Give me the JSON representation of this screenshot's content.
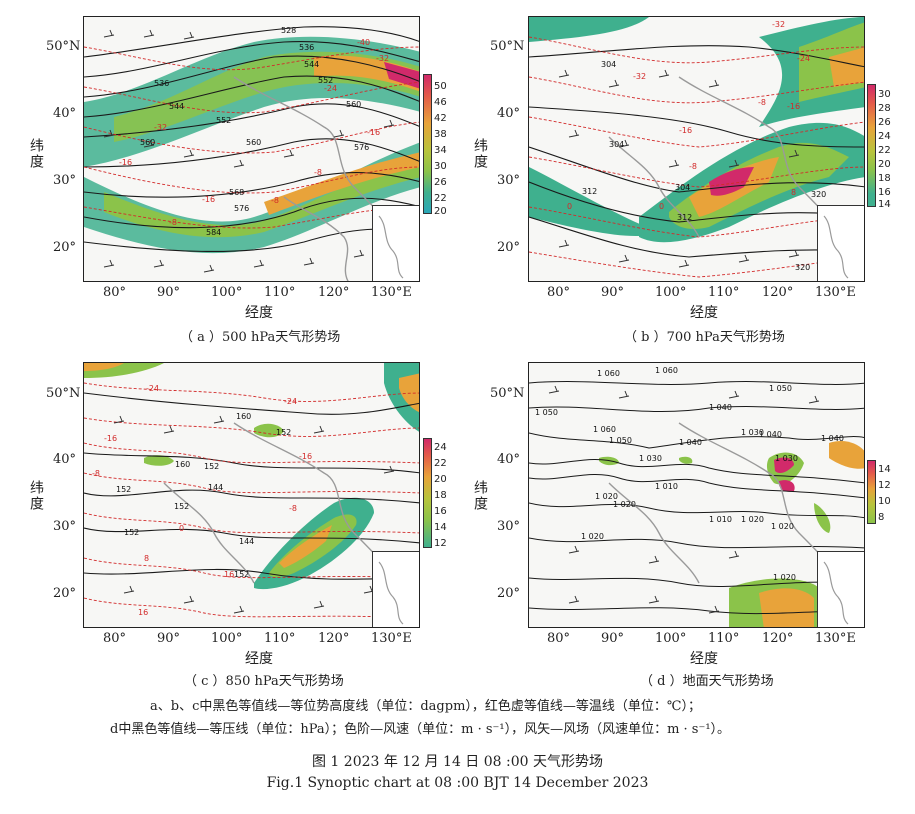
{
  "panels": [
    {
      "id": "a",
      "caption": "（ a ）500 hPa天气形势场",
      "ylabel": "纬度",
      "xlabel": "经度",
      "yticks": [
        "50°N",
        "40°",
        "30°",
        "20°"
      ],
      "xticks": [
        "80°",
        "90°",
        "100°",
        "110°",
        "120°",
        "130°E"
      ],
      "colorbar_ticks": [
        "50",
        "46",
        "42",
        "38",
        "34",
        "30",
        "26",
        "22",
        "20"
      ],
      "contour_labels": [
        "528",
        "536",
        "544",
        "552",
        "536",
        "544",
        "552",
        "560",
        "560",
        "560",
        "568",
        "576",
        "576",
        "584"
      ],
      "temp_labels": [
        "-40",
        "-32",
        "-24",
        "-32",
        "-16",
        "-16",
        "-8",
        "-16",
        "-8",
        "-8"
      ]
    },
    {
      "id": "b",
      "caption": "（ b ）700 hPa天气形势场",
      "ylabel": "纬度",
      "xlabel": "经度",
      "yticks": [
        "50°N",
        "40°",
        "30°",
        "20°"
      ],
      "xticks": [
        "80°",
        "90°",
        "100°",
        "110°",
        "120°",
        "130°E"
      ],
      "colorbar_ticks": [
        "30",
        "28",
        "26",
        "24",
        "22",
        "20",
        "18",
        "16",
        "14"
      ],
      "contour_labels": [
        "304",
        "304",
        "312",
        "304",
        "312",
        "320",
        "320"
      ],
      "temp_labels": [
        "-32",
        "-24",
        "-32",
        "-16",
        "-16",
        "-8",
        "-8",
        "0",
        "0",
        "8"
      ]
    },
    {
      "id": "c",
      "caption": "（ c ）850 hPa天气形势场",
      "ylabel": "纬度",
      "xlabel": "经度",
      "yticks": [
        "50°N",
        "40°",
        "30°",
        "20°"
      ],
      "xticks": [
        "80°",
        "90°",
        "100°",
        "110°",
        "120°",
        "130°E"
      ],
      "colorbar_ticks": [
        "24",
        "22",
        "20",
        "18",
        "16",
        "14",
        "12"
      ],
      "contour_labels": [
        "160",
        "152",
        "160",
        "152",
        "144",
        "152",
        "152",
        "144",
        "152",
        "152"
      ],
      "temp_labels": [
        "-24",
        "-24",
        "-16",
        "-16",
        "-8",
        "-8",
        "0",
        "8",
        "16",
        "16"
      ]
    },
    {
      "id": "d",
      "caption": "（ d ）地面天气形势场",
      "ylabel": "纬度",
      "xlabel": "经度",
      "yticks": [
        "50°N",
        "40°",
        "30°",
        "20°"
      ],
      "xticks": [
        "80°",
        "90°",
        "100°",
        "110°",
        "120°",
        "130°E"
      ],
      "colorbar_ticks": [
        "14",
        "12",
        "10",
        "8"
      ],
      "contour_labels": [
        "1 060",
        "1 060",
        "1 050",
        "1 060",
        "1 050",
        "1 040",
        "1 030",
        "1 050",
        "1 040",
        "1 040",
        "1 030",
        "1 040",
        "1 030",
        "1 020",
        "1 020",
        "1 010",
        "1 010",
        "1 020",
        "1 020",
        "1 020",
        "1 020"
      ]
    }
  ],
  "notes": {
    "line1": "a、b、c中黑色等值线—等位势高度线（单位：dagpm），红色虚等值线—等温线（单位：℃）；",
    "line2": "d中黑色等值线—等压线（单位：hPa）；色阶—风速（单位：m · s⁻¹），风矢—风场（风速单位：m · s⁻¹）。"
  },
  "figure": {
    "title_cn": "图 1   2023 年 12 月 14 日 08 :00 天气形势场",
    "title_en": "Fig.1   Synoptic chart at 08 :00 BJT 14 December 2023"
  },
  "colors": {
    "contour": "#1a1a1a",
    "isotherm": "#d22a2a",
    "wind_low": "#3fb08e",
    "wind_mid": "#8bc34a",
    "wind_high": "#e8a33a",
    "wind_max": "#d12a6a",
    "coast": "#9a9a9a"
  }
}
